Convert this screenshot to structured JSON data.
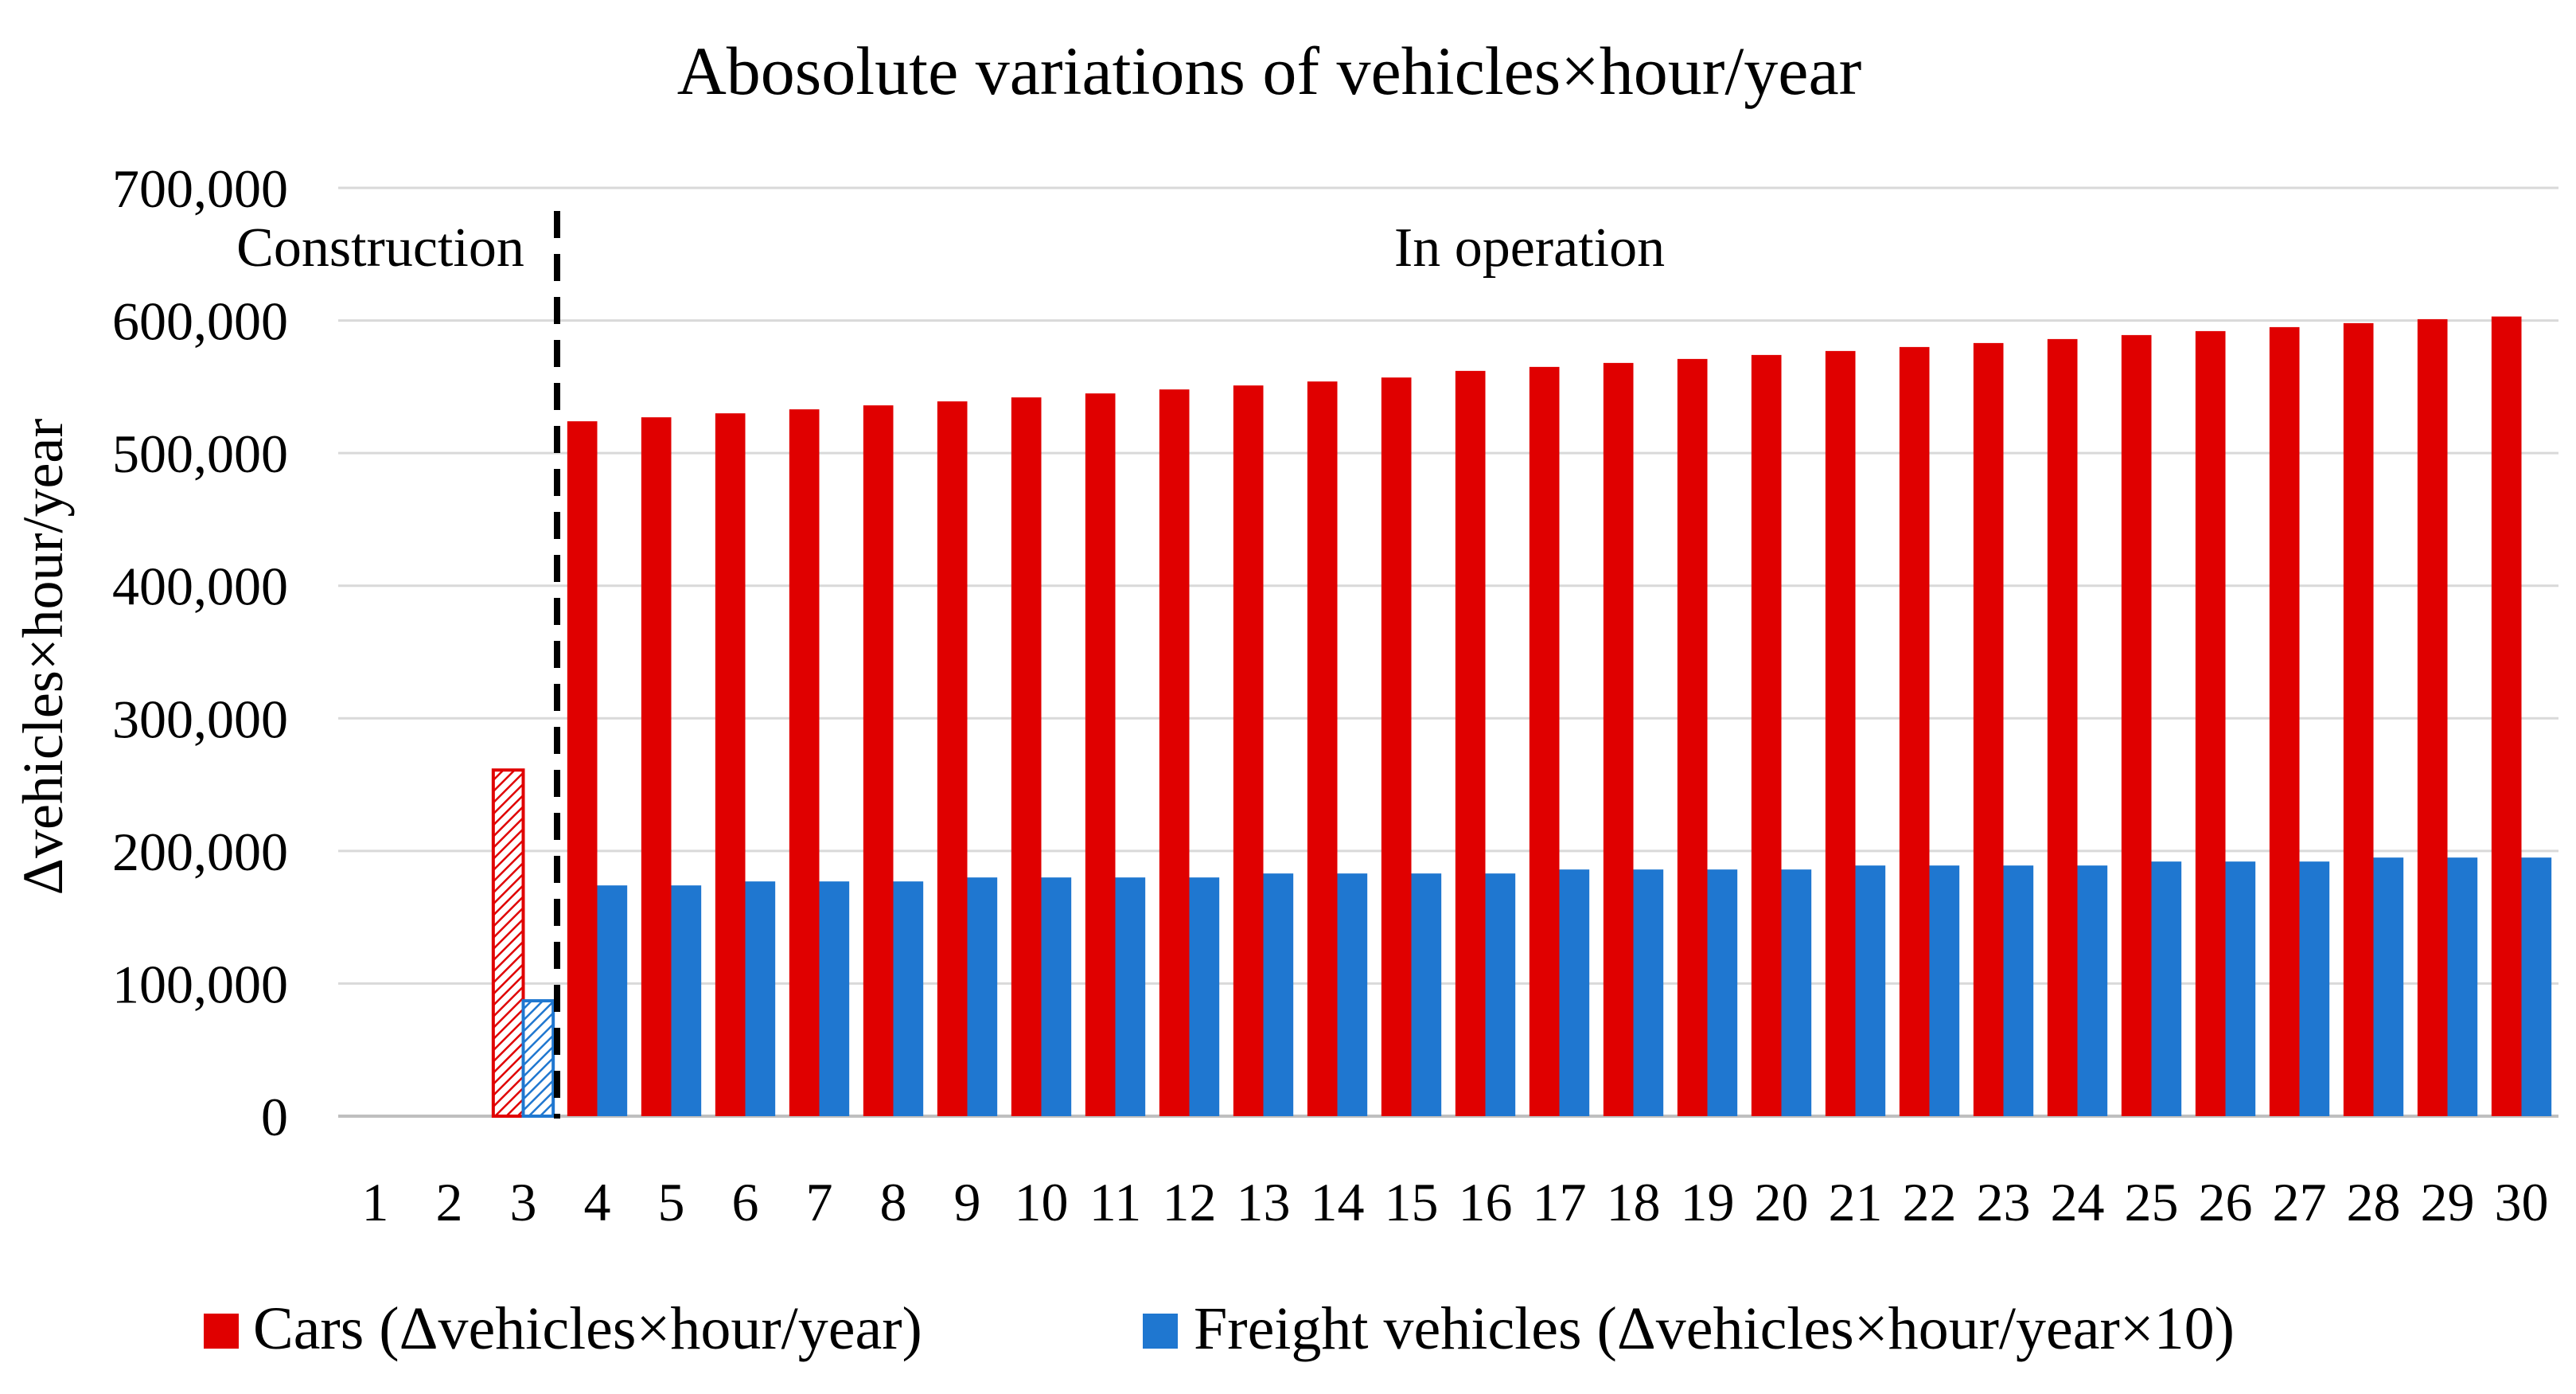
{
  "chart_data": {
    "type": "bar",
    "title": "Abosolute variations of vehicles×hour/year",
    "xlabel": "",
    "ylabel": "Δvehicles×hour/year",
    "categories": [
      "1",
      "2",
      "3",
      "4",
      "5",
      "6",
      "7",
      "8",
      "9",
      "10",
      "11",
      "12",
      "13",
      "14",
      "15",
      "16",
      "17",
      "18",
      "19",
      "20",
      "21",
      "22",
      "23",
      "24",
      "25",
      "26",
      "27",
      "28",
      "29",
      "30"
    ],
    "ylim": [
      0,
      700000
    ],
    "yticks": [
      0,
      100000,
      200000,
      300000,
      400000,
      500000,
      600000,
      700000
    ],
    "ytick_labels": [
      "0",
      "100,000",
      "200,000",
      "300,000",
      "400,000",
      "500,000",
      "600,000",
      "700,000"
    ],
    "grid": true,
    "legend_position": "bottom",
    "annotations": {
      "construction_label": "Construction",
      "operation_label": "In operation"
    },
    "series": [
      {
        "name": "Cars (Δvehicles×hour/year)",
        "color": "#e00000",
        "values": [
          0,
          0,
          261000,
          524000,
          527000,
          530000,
          533000,
          536000,
          539000,
          542000,
          545000,
          548000,
          551000,
          554000,
          557000,
          562000,
          565000,
          568000,
          571000,
          574000,
          577000,
          580000,
          583000,
          586000,
          589000,
          592000,
          595000,
          598000,
          601000,
          603000
        ]
      },
      {
        "name": "Freight vehicles (Δvehicles×hour/year×10)",
        "color": "#1f77d0",
        "values": [
          0,
          0,
          87000,
          174000,
          174000,
          177000,
          177000,
          177000,
          180000,
          180000,
          180000,
          180000,
          183000,
          183000,
          183000,
          183000,
          186000,
          186000,
          186000,
          186000,
          189000,
          189000,
          189000,
          189000,
          192000,
          192000,
          192000,
          195000,
          195000,
          195000
        ]
      }
    ],
    "construction_categories": [
      "1",
      "2",
      "3"
    ]
  }
}
